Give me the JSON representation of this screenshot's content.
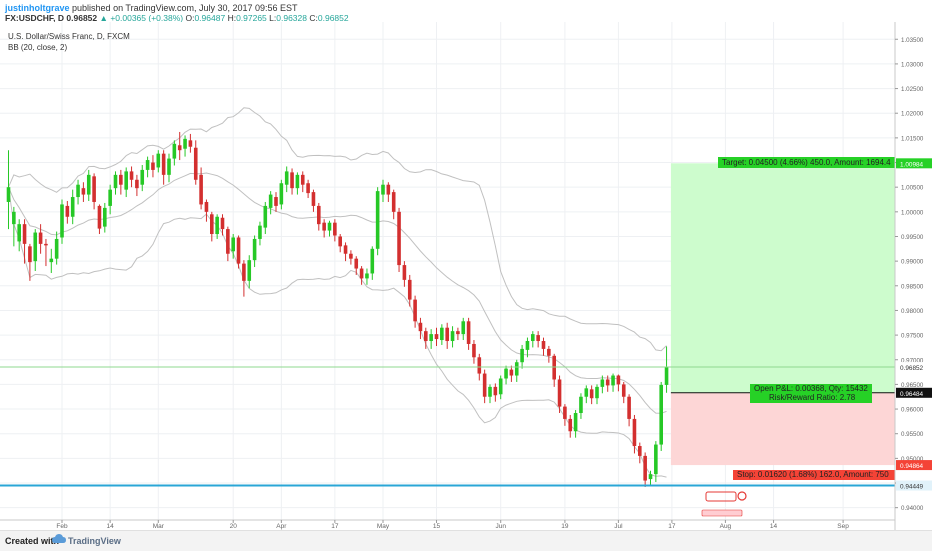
{
  "header": {
    "author": "justinholtgrave",
    "published_text": "published on TradingView.com, July 30, 2017 09:56 EST"
  },
  "quote": {
    "symbol": "FX:USDCHF, D",
    "last": "0.96852",
    "change": "+0.00365 (+0.38%)",
    "open_label": "O:",
    "open": "0.96487",
    "high_label": "H:",
    "high": "0.97265",
    "low_label": "L:",
    "low": "0.96328",
    "close_label": "C:",
    "close": "0.96852"
  },
  "legend": {
    "title": "U.S. Dollar/Swiss Franc, D, FXCM",
    "indicator": "BB (20, close, 2)"
  },
  "footer": {
    "created_with": "Created with",
    "brand": "TradingView"
  },
  "colors": {
    "bull": "#26c826",
    "bear": "#d32f2f",
    "band": "#c0c0c0",
    "target_zone": "#cdfccd",
    "stop_zone": "#fdd6d6",
    "support_line": "#29a6d6"
  },
  "position": {
    "target_text": "Target: 0.04500 (4.66%) 450.0, Amount: 1694.4",
    "open_pnl_text": "Open P&L: 0.00368, Qty: 15432",
    "rr_text": "Risk/Reward Ratio: 2.78",
    "stop_text": "Stop: 0.01620 (1.68%) 162.0, Amount: 750"
  },
  "chart_data": {
    "type": "candlestick",
    "title": "U.S. Dollar/Swiss Franc, D, FXCM",
    "ylim": [
      0.9375,
      1.0385
    ],
    "y_ticks": [
      "1.03500",
      "1.03000",
      "1.02500",
      "1.02000",
      "1.01500",
      "1.01000",
      "1.00500",
      "1.00000",
      "0.99500",
      "0.99000",
      "0.98500",
      "0.98000",
      "0.97500",
      "0.97000",
      "0.96500",
      "0.96000",
      "0.95500",
      "0.95000",
      "0.94500",
      "0.94000"
    ],
    "y_tick_values": [
      1.035,
      1.03,
      1.025,
      1.02,
      1.015,
      1.01,
      1.005,
      1.0,
      0.995,
      0.99,
      0.985,
      0.98,
      0.975,
      0.97,
      0.965,
      0.96,
      0.955,
      0.95,
      0.945,
      0.94
    ],
    "x_ticks": [
      {
        "label": "Feb",
        "idx": 10
      },
      {
        "label": "14",
        "idx": 19
      },
      {
        "label": "Mar",
        "idx": 28
      },
      {
        "label": "20",
        "idx": 42
      },
      {
        "label": "Apr",
        "idx": 51
      },
      {
        "label": "17",
        "idx": 61
      },
      {
        "label": "May",
        "idx": 70
      },
      {
        "label": "15",
        "idx": 80
      },
      {
        "label": "Jun",
        "idx": 92
      },
      {
        "label": "19",
        "idx": 104
      },
      {
        "label": "Jul",
        "idx": 114
      },
      {
        "label": "17",
        "idx": 124
      },
      {
        "label": "Aug",
        "idx": 134
      },
      {
        "label": "14",
        "idx": 143
      },
      {
        "label": "Sep",
        "idx": 156
      }
    ],
    "candles": [
      [
        1.002,
        1.005,
        0.9975,
        0.9965,
        1.0125
      ],
      [
        0.9975,
        1.0,
        0.9935,
        0.993,
        1.001
      ],
      [
        0.994,
        0.9975,
        0.9925,
        0.992,
        0.9985
      ],
      [
        0.9975,
        0.9935,
        0.99,
        0.9895,
        0.9985
      ],
      [
        0.993,
        0.9898,
        0.9865,
        0.986,
        0.9935
      ],
      [
        0.99,
        0.9958,
        0.9888,
        0.988,
        0.9965
      ],
      [
        0.9958,
        0.9935,
        0.992,
        0.9915,
        0.9975
      ],
      [
        0.9935,
        0.9932,
        0.9895,
        0.989,
        0.9945
      ],
      [
        0.9898,
        0.9905,
        0.988,
        0.9876,
        0.9925
      ],
      [
        0.9905,
        0.9945,
        0.9898,
        0.9893,
        0.996
      ],
      [
        0.9948,
        1.0015,
        0.994,
        0.9935,
        1.0025
      ],
      [
        1.0012,
        0.999,
        0.9982,
        0.9976,
        1.0022
      ],
      [
        0.999,
        1.003,
        0.9982,
        0.9975,
        1.0045
      ],
      [
        1.003,
        1.0055,
        1.0022,
        1.0015,
        1.0065
      ],
      [
        1.0048,
        1.0035,
        1.0026,
        1.002,
        1.006
      ],
      [
        1.0035,
        1.0075,
        1.003,
        1.0022,
        1.0085
      ],
      [
        1.0072,
        1.002,
        1.001,
        1.0005,
        1.0078
      ],
      [
        1.0012,
        0.9966,
        0.996,
        0.9955,
        1.0015
      ],
      [
        0.997,
        1.0008,
        0.9962,
        0.9958,
        1.0018
      ],
      [
        1.0012,
        1.0045,
        1.0005,
        0.9995,
        1.0055
      ],
      [
        1.0048,
        1.0075,
        1.0042,
        1.0035,
        1.0082
      ],
      [
        1.0075,
        1.0055,
        1.004,
        1.0035,
        1.0085
      ],
      [
        1.0045,
        1.0082,
        1.004,
        1.003,
        1.009
      ],
      [
        1.0082,
        1.0065,
        1.0055,
        1.005,
        1.0092
      ],
      [
        1.0065,
        1.0048,
        1.0038,
        1.0032,
        1.0075
      ],
      [
        1.0055,
        1.0085,
        1.0048,
        1.0042,
        1.0095
      ],
      [
        1.0085,
        1.0105,
        1.0075,
        1.007,
        1.0112
      ],
      [
        1.01,
        1.0085,
        1.0075,
        1.007,
        1.0115
      ],
      [
        1.009,
        1.0118,
        1.0085,
        1.008,
        1.0125
      ],
      [
        1.0118,
        1.0075,
        1.0062,
        1.0055,
        1.0125
      ],
      [
        1.0075,
        1.0108,
        1.0068,
        1.006,
        1.0118
      ],
      [
        1.0108,
        1.0138,
        1.01,
        1.0094,
        1.0145
      ],
      [
        1.0135,
        1.0125,
        1.011,
        1.0105,
        1.0162
      ],
      [
        1.0128,
        1.0148,
        1.012,
        1.0112,
        1.0155
      ],
      [
        1.0145,
        1.0132,
        1.0125,
        1.012,
        1.0158
      ],
      [
        1.013,
        1.0065,
        1.006,
        1.0055,
        1.0145
      ],
      [
        1.0075,
        1.0015,
        1.001,
        1.0005,
        1.009
      ],
      [
        1.002,
        1.0,
        0.9985,
        0.998,
        1.0025
      ],
      [
        0.9995,
        0.9955,
        0.9945,
        0.994,
        1.0
      ],
      [
        0.9955,
        0.999,
        0.995,
        0.9945,
        0.9995
      ],
      [
        0.9988,
        0.9965,
        0.9958,
        0.9952,
        0.9995
      ],
      [
        0.9965,
        0.9915,
        0.9908,
        0.99,
        0.997
      ],
      [
        0.992,
        0.9948,
        0.9914,
        0.9905,
        0.9955
      ],
      [
        0.9948,
        0.9895,
        0.9888,
        0.9885,
        0.9952
      ],
      [
        0.9895,
        0.986,
        0.9855,
        0.9828,
        0.9902
      ],
      [
        0.986,
        0.9902,
        0.9852,
        0.9845,
        0.9912
      ],
      [
        0.9902,
        0.9945,
        0.9895,
        0.9888,
        0.9952
      ],
      [
        0.9945,
        0.9972,
        0.994,
        0.9932,
        0.998
      ],
      [
        0.9968,
        1.0012,
        0.9962,
        0.9955,
        1.002
      ],
      [
        1.0008,
        1.0035,
        1.0002,
        0.9995,
        1.0042
      ],
      [
        1.003,
        1.0012,
        1.0005,
        1.0,
        1.004
      ],
      [
        1.0015,
        1.0058,
        1.001,
        1.0005,
        1.0065
      ],
      [
        1.0055,
        1.0082,
        1.0048,
        1.004,
        1.0092
      ],
      [
        1.008,
        1.0048,
        1.004,
        1.0035,
        1.0088
      ],
      [
        1.0048,
        1.0075,
        1.004,
        1.0035,
        1.008
      ],
      [
        1.0075,
        1.0055,
        1.0045,
        1.004,
        1.0082
      ],
      [
        1.0058,
        1.0038,
        1.0032,
        1.0028,
        1.0065
      ],
      [
        1.004,
        1.0012,
        1.0005,
        1.0,
        1.0045
      ],
      [
        1.0012,
        0.9975,
        0.9968,
        0.9962,
        1.0018
      ],
      [
        0.9978,
        0.9962,
        0.9955,
        0.9948,
        0.9985
      ],
      [
        0.9962,
        0.9978,
        0.9955,
        0.995,
        0.9982
      ],
      [
        0.9978,
        0.9952,
        0.9945,
        0.994,
        0.9985
      ],
      [
        0.995,
        0.993,
        0.9922,
        0.9918,
        0.9955
      ],
      [
        0.9932,
        0.9915,
        0.9905,
        0.99,
        0.9938
      ],
      [
        0.9915,
        0.9905,
        0.9898,
        0.9893,
        0.9922
      ],
      [
        0.9905,
        0.9885,
        0.9878,
        0.9872,
        0.991
      ],
      [
        0.9885,
        0.9865,
        0.9858,
        0.9852,
        0.989
      ],
      [
        0.9865,
        0.9875,
        0.9858,
        0.9852,
        0.9885
      ],
      [
        0.9875,
        0.9925,
        0.9868,
        0.9862,
        0.993
      ],
      [
        0.9925,
        1.0042,
        0.992,
        0.9912,
        1.005
      ],
      [
        1.0035,
        1.0055,
        1.0028,
        1.002,
        1.0065
      ],
      [
        1.0055,
        1.0035,
        1.0025,
        1.002,
        1.006
      ],
      [
        1.004,
        1.0,
        0.9992,
        0.9985,
        1.0045
      ],
      [
        1.0,
        0.9892,
        0.9885,
        0.9878,
        1.0008
      ],
      [
        0.9892,
        0.9862,
        0.9855,
        0.9848,
        0.99
      ],
      [
        0.9862,
        0.9822,
        0.9815,
        0.9808,
        0.9872
      ],
      [
        0.9822,
        0.9778,
        0.977,
        0.9765,
        0.983
      ],
      [
        0.9775,
        0.9758,
        0.975,
        0.9742,
        0.9785
      ],
      [
        0.9758,
        0.9738,
        0.973,
        0.9722,
        0.9765
      ],
      [
        0.9738,
        0.9752,
        0.973,
        0.9722,
        0.9762
      ],
      [
        0.9752,
        0.9742,
        0.9735,
        0.9728,
        0.9765
      ],
      [
        0.974,
        0.9765,
        0.9735,
        0.973,
        0.9772
      ],
      [
        0.9765,
        0.9738,
        0.973,
        0.9722,
        0.9775
      ],
      [
        0.9738,
        0.9758,
        0.973,
        0.9725,
        0.9768
      ],
      [
        0.9758,
        0.9752,
        0.9745,
        0.974,
        0.9765
      ],
      [
        0.9752,
        0.9778,
        0.9745,
        0.974,
        0.9785
      ],
      [
        0.9778,
        0.9732,
        0.9725,
        0.972,
        0.9785
      ],
      [
        0.9732,
        0.9705,
        0.9698,
        0.9692,
        0.974
      ],
      [
        0.9705,
        0.9672,
        0.9665,
        0.9658,
        0.9712
      ],
      [
        0.9672,
        0.9625,
        0.9618,
        0.9612,
        0.968
      ],
      [
        0.9625,
        0.9645,
        0.9618,
        0.9612,
        0.965
      ],
      [
        0.9645,
        0.9628,
        0.9622,
        0.9615,
        0.9652
      ],
      [
        0.963,
        0.9662,
        0.9625,
        0.962,
        0.9668
      ],
      [
        0.9662,
        0.9682,
        0.9655,
        0.965,
        0.9688
      ],
      [
        0.968,
        0.9668,
        0.966,
        0.9655,
        0.9688
      ],
      [
        0.9668,
        0.9695,
        0.966,
        0.9655,
        0.97
      ],
      [
        0.9695,
        0.9722,
        0.9688,
        0.9682,
        0.973
      ],
      [
        0.972,
        0.9738,
        0.9712,
        0.9705,
        0.9745
      ],
      [
        0.9738,
        0.9752,
        0.973,
        0.9725,
        0.9758
      ],
      [
        0.975,
        0.9738,
        0.973,
        0.9725,
        0.9758
      ],
      [
        0.9738,
        0.9722,
        0.9715,
        0.9708,
        0.9745
      ],
      [
        0.9722,
        0.9708,
        0.97,
        0.9694,
        0.9728
      ],
      [
        0.9708,
        0.966,
        0.9652,
        0.9645,
        0.9712
      ],
      [
        0.966,
        0.9605,
        0.9598,
        0.9592,
        0.9668
      ],
      [
        0.9605,
        0.958,
        0.9572,
        0.9566,
        0.961
      ],
      [
        0.958,
        0.9555,
        0.9548,
        0.9542,
        0.9588
      ],
      [
        0.9555,
        0.9592,
        0.9548,
        0.9542,
        0.9598
      ],
      [
        0.9592,
        0.9625,
        0.9585,
        0.958,
        0.9632
      ],
      [
        0.9625,
        0.9642,
        0.9618,
        0.9612,
        0.9648
      ],
      [
        0.964,
        0.9622,
        0.9615,
        0.961,
        0.9648
      ],
      [
        0.9622,
        0.9645,
        0.9615,
        0.961,
        0.965
      ],
      [
        0.9645,
        0.966,
        0.9638,
        0.9632,
        0.9668
      ],
      [
        0.966,
        0.9648,
        0.964,
        0.9635,
        0.9668
      ],
      [
        0.9648,
        0.9668,
        0.964,
        0.9635,
        0.9672
      ],
      [
        0.9668,
        0.965,
        0.9642,
        0.9636,
        0.967
      ],
      [
        0.965,
        0.9625,
        0.9618,
        0.9612,
        0.9655
      ],
      [
        0.9625,
        0.958,
        0.9572,
        0.9565,
        0.963
      ],
      [
        0.958,
        0.9525,
        0.9518,
        0.951,
        0.9588
      ],
      [
        0.9525,
        0.9505,
        0.9495,
        0.949,
        0.9532
      ],
      [
        0.9505,
        0.9455,
        0.9448,
        0.9442,
        0.9512
      ],
      [
        0.9458,
        0.9468,
        0.945,
        0.9445,
        0.9475
      ],
      [
        0.9468,
        0.9528,
        0.946,
        0.9452,
        0.9535
      ],
      [
        0.9528,
        0.9649,
        0.952,
        0.9515,
        0.9655
      ],
      [
        0.9649,
        0.9685,
        0.9633,
        0.9633,
        0.9727
      ]
    ]
  }
}
